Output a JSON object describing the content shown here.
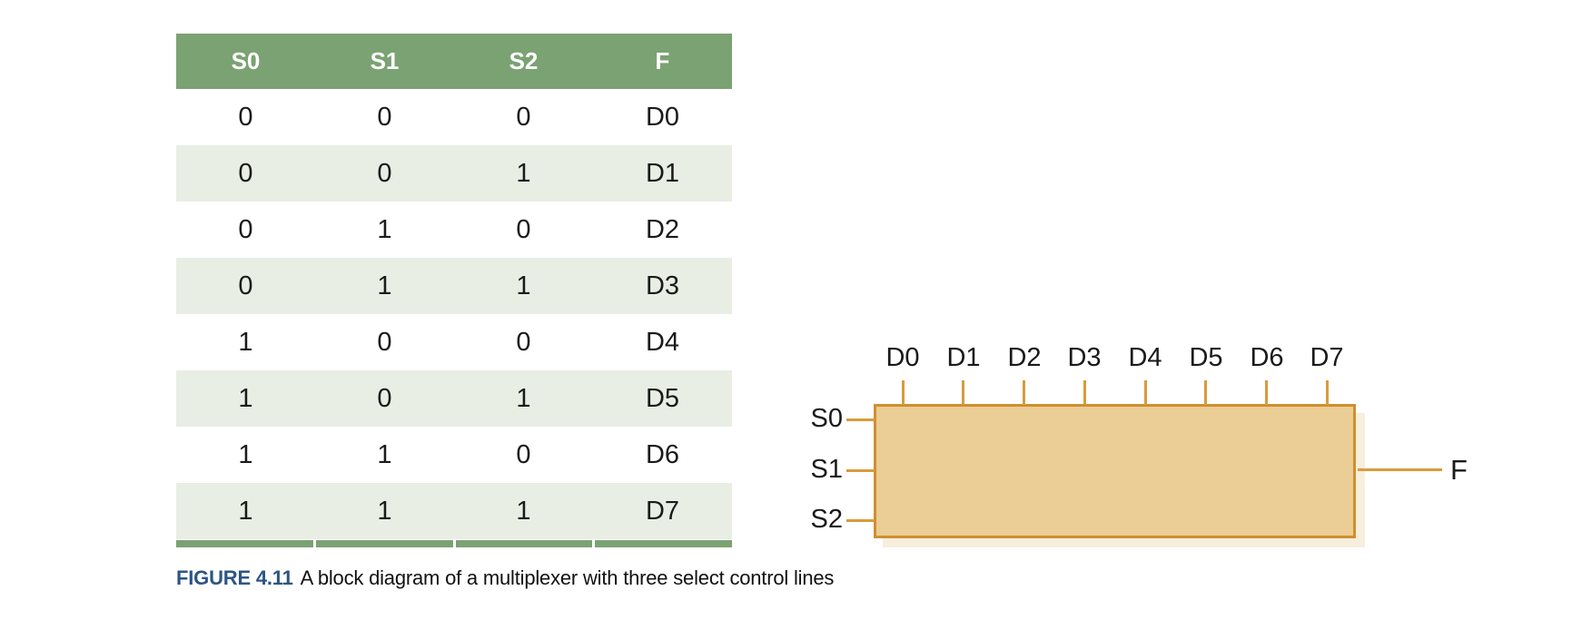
{
  "truth_table": {
    "headers": [
      "S0",
      "S1",
      "S2",
      "F"
    ],
    "rows": [
      [
        "0",
        "0",
        "0",
        "D0"
      ],
      [
        "0",
        "0",
        "1",
        "D1"
      ],
      [
        "0",
        "1",
        "0",
        "D2"
      ],
      [
        "0",
        "1",
        "1",
        "D3"
      ],
      [
        "1",
        "0",
        "0",
        "D4"
      ],
      [
        "1",
        "0",
        "1",
        "D5"
      ],
      [
        "1",
        "1",
        "0",
        "D6"
      ],
      [
        "1",
        "1",
        "1",
        "D7"
      ]
    ]
  },
  "diagram": {
    "d_inputs": [
      "D0",
      "D1",
      "D2",
      "D3",
      "D4",
      "D5",
      "D6",
      "D7"
    ],
    "s_inputs": [
      "S0",
      "S1",
      "S2"
    ],
    "f_output": "F"
  },
  "caption": {
    "label": "FIGURE 4.11",
    "text": "A block diagram of a multiplexer with three select control lines"
  },
  "colors": {
    "table_header_green": "#7ba272",
    "table_row_alt_green": "#e9eee5",
    "table_bottom_bar_green": "#7ba272",
    "mux_fill": "#ebcd96",
    "mux_border": "#cf8f2e",
    "wire_orange": "#d89b3b",
    "mux_shadow": "#f8eedd",
    "caption_navy": "#2d5586"
  }
}
